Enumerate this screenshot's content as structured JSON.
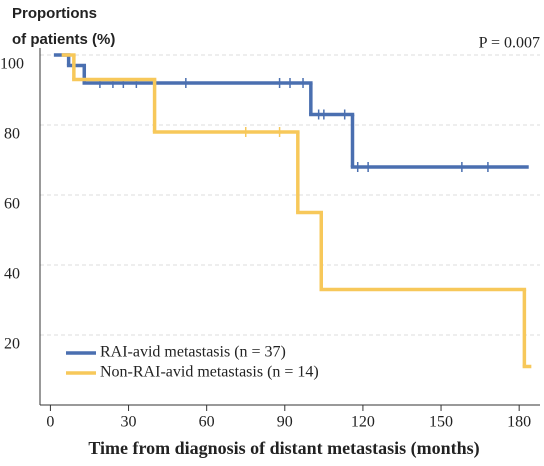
{
  "chart_data": {
    "type": "step",
    "y_label": [
      "Proportions",
      "of patients (%)"
    ],
    "annotation": "P = 0.007",
    "x_label": "Time from diagnosis of distant metastasis (months)",
    "xlim": [
      -4,
      188
    ],
    "xticks": [
      0,
      30,
      60,
      90,
      120,
      150,
      180
    ],
    "ylim": [
      0,
      102
    ],
    "yticks": [
      20,
      40,
      60,
      80,
      100
    ],
    "grid": true,
    "legend": "lower left",
    "series": [
      {
        "name": "RAI-avid metastasis (n = 37)",
        "color": "#4a6fb0",
        "x": [
          2,
          7,
          13,
          100,
          116,
          183
        ],
        "values": [
          100,
          97,
          92,
          83,
          68,
          68
        ],
        "censor_x": [
          19,
          24,
          28,
          33,
          52,
          88,
          92,
          97,
          103,
          105,
          113,
          118,
          122,
          158,
          168
        ],
        "censor_values": [
          92,
          92,
          92,
          92,
          92,
          92,
          92,
          92,
          83,
          83,
          83,
          68,
          68,
          68,
          68
        ]
      },
      {
        "name": "Non-RAI-avid metastasis (n = 14)",
        "color": "#f7c85a",
        "x": [
          5,
          9,
          40,
          95,
          104,
          182,
          184
        ],
        "values": [
          100,
          93,
          78,
          55,
          33,
          11,
          11
        ],
        "censor_x": [
          75,
          88
        ],
        "censor_values": [
          78,
          78
        ]
      }
    ]
  }
}
